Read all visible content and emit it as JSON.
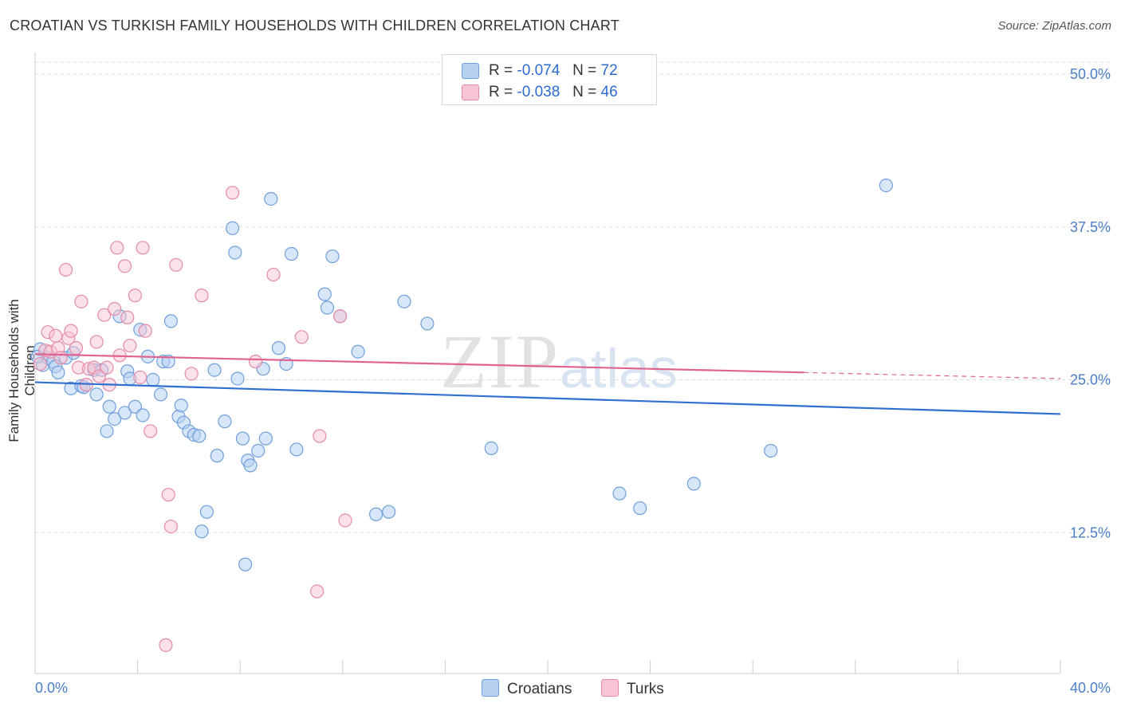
{
  "title": "CROATIAN VS TURKISH FAMILY HOUSEHOLDS WITH CHILDREN CORRELATION CHART",
  "source": "Source: ZipAtlas.com",
  "watermark": {
    "big": "ZIP",
    "small": "atlas"
  },
  "legend": [
    {
      "r_label": "R =",
      "r_value": "-0.074",
      "n_label": "N =",
      "n_value": "72"
    },
    {
      "r_label": "R =",
      "r_value": "-0.038",
      "n_label": "N =",
      "n_value": "46"
    }
  ],
  "bottom_legend": [
    "Croatians",
    "Turks"
  ],
  "colors": {
    "croatians_fill": "#b7d1f3",
    "croatians_stroke": "#6f9fdc",
    "croatians_line": "#2f6fcf",
    "turks_fill": "#f7c4d3",
    "turks_stroke": "#e68aa8",
    "turks_line": "#e0648e",
    "grid": "#dddddd",
    "tick_text": "#4a7ec8"
  },
  "chart_data": {
    "type": "scatter",
    "title": "CROATIAN VS TURKISH FAMILY HOUSEHOLDS WITH CHILDREN CORRELATION CHART",
    "xlabel": "",
    "ylabel": "Family Households with Children",
    "xlim": [
      0,
      40
    ],
    "ylim": [
      0,
      50
    ],
    "x_tick_labels": [
      "0.0%",
      "40.0%"
    ],
    "y_ticks": [
      12.5,
      25.0,
      37.5,
      50.0
    ],
    "y_tick_labels": [
      "12.5%",
      "25.0%",
      "37.5%",
      "50.0%"
    ],
    "grid": true,
    "series": [
      {
        "name": "Croatians",
        "points": [
          [
            0.2,
            27.5
          ],
          [
            0.3,
            26.2
          ],
          [
            0.5,
            26.8
          ],
          [
            0.7,
            26.5
          ],
          [
            0.8,
            26.1
          ],
          [
            0.9,
            25.6
          ],
          [
            1.2,
            26.8
          ],
          [
            1.4,
            24.3
          ],
          [
            1.5,
            27.2
          ],
          [
            1.8,
            24.5
          ],
          [
            1.9,
            24.4
          ],
          [
            2.3,
            25.8
          ],
          [
            2.4,
            23.8
          ],
          [
            2.6,
            25.8
          ],
          [
            2.8,
            20.8
          ],
          [
            2.9,
            22.8
          ],
          [
            3.1,
            21.8
          ],
          [
            3.3,
            30.2
          ],
          [
            3.5,
            22.3
          ],
          [
            3.6,
            25.7
          ],
          [
            3.7,
            25.1
          ],
          [
            3.9,
            22.8
          ],
          [
            4.1,
            29.1
          ],
          [
            4.2,
            22.1
          ],
          [
            4.4,
            26.9
          ],
          [
            4.6,
            25.0
          ],
          [
            4.9,
            23.8
          ],
          [
            5.0,
            26.5
          ],
          [
            5.2,
            26.5
          ],
          [
            5.3,
            29.8
          ],
          [
            5.6,
            22.0
          ],
          [
            5.7,
            22.9
          ],
          [
            5.8,
            21.5
          ],
          [
            6.0,
            20.8
          ],
          [
            6.2,
            20.5
          ],
          [
            6.4,
            20.4
          ],
          [
            6.5,
            12.6
          ],
          [
            6.7,
            14.2
          ],
          [
            7.0,
            25.8
          ],
          [
            7.1,
            18.8
          ],
          [
            7.4,
            21.6
          ],
          [
            7.7,
            37.4
          ],
          [
            7.8,
            35.4
          ],
          [
            7.9,
            25.1
          ],
          [
            8.1,
            20.2
          ],
          [
            8.2,
            9.9
          ],
          [
            8.3,
            18.4
          ],
          [
            8.4,
            18.0
          ],
          [
            8.7,
            19.2
          ],
          [
            8.9,
            25.9
          ],
          [
            9.0,
            20.2
          ],
          [
            9.2,
            39.8
          ],
          [
            9.5,
            27.6
          ],
          [
            9.8,
            26.3
          ],
          [
            10.0,
            35.3
          ],
          [
            10.2,
            19.3
          ],
          [
            11.3,
            32.0
          ],
          [
            11.4,
            30.9
          ],
          [
            11.6,
            35.1
          ],
          [
            11.9,
            30.2
          ],
          [
            12.6,
            27.3
          ],
          [
            13.3,
            14.0
          ],
          [
            13.8,
            14.2
          ],
          [
            14.4,
            31.4
          ],
          [
            15.3,
            29.6
          ],
          [
            17.8,
            19.4
          ],
          [
            22.8,
            15.7
          ],
          [
            23.6,
            14.5
          ],
          [
            25.7,
            16.5
          ],
          [
            28.7,
            19.2
          ],
          [
            33.2,
            40.9
          ],
          [
            0.1,
            26.9
          ]
        ]
      },
      {
        "name": "Turks",
        "points": [
          [
            0.2,
            26.3
          ],
          [
            0.4,
            27.4
          ],
          [
            0.5,
            28.9
          ],
          [
            0.6,
            27.3
          ],
          [
            0.8,
            28.6
          ],
          [
            0.9,
            27.6
          ],
          [
            1.0,
            26.8
          ],
          [
            1.2,
            34.0
          ],
          [
            1.3,
            28.4
          ],
          [
            1.4,
            29.0
          ],
          [
            1.6,
            27.6
          ],
          [
            1.7,
            26.0
          ],
          [
            1.8,
            31.4
          ],
          [
            2.0,
            24.6
          ],
          [
            2.1,
            25.9
          ],
          [
            2.3,
            26.0
          ],
          [
            2.4,
            28.1
          ],
          [
            2.5,
            25.3
          ],
          [
            2.7,
            30.3
          ],
          [
            2.8,
            26.0
          ],
          [
            2.9,
            24.6
          ],
          [
            3.1,
            30.8
          ],
          [
            3.2,
            35.8
          ],
          [
            3.3,
            27.0
          ],
          [
            3.5,
            34.3
          ],
          [
            3.6,
            30.1
          ],
          [
            3.7,
            27.8
          ],
          [
            3.9,
            31.9
          ],
          [
            4.1,
            25.2
          ],
          [
            4.2,
            35.8
          ],
          [
            4.3,
            29.0
          ],
          [
            4.5,
            20.8
          ],
          [
            5.1,
            3.3
          ],
          [
            5.2,
            15.6
          ],
          [
            5.3,
            13.0
          ],
          [
            5.5,
            34.4
          ],
          [
            6.1,
            25.5
          ],
          [
            6.5,
            31.9
          ],
          [
            7.7,
            40.3
          ],
          [
            8.6,
            26.5
          ],
          [
            9.3,
            33.6
          ],
          [
            10.4,
            28.5
          ],
          [
            11.0,
            7.7
          ],
          [
            11.1,
            20.4
          ],
          [
            11.9,
            30.2
          ],
          [
            12.1,
            13.5
          ]
        ]
      }
    ],
    "trend_lines": [
      {
        "name": "Croatians",
        "x": [
          0,
          40
        ],
        "y": [
          24.8,
          22.2
        ]
      },
      {
        "name": "Turks",
        "x": [
          0,
          30
        ],
        "y": [
          27.1,
          25.6
        ],
        "dashed_to": [
          40,
          25.1
        ]
      }
    ]
  }
}
